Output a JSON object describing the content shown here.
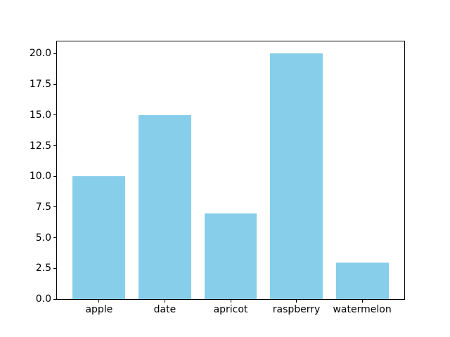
{
  "chart_data": {
    "type": "bar",
    "categories": [
      "apple",
      "date",
      "apricot",
      "raspberry",
      "watermelon"
    ],
    "values": [
      10,
      15,
      7,
      20,
      3
    ],
    "title": "",
    "xlabel": "",
    "ylabel": "",
    "ylim": [
      0,
      21
    ],
    "xlim": [
      -0.64,
      4.64
    ],
    "bar_width_units": 0.8,
    "yticks": [
      0.0,
      2.5,
      5.0,
      7.5,
      10.0,
      12.5,
      15.0,
      17.5,
      20.0
    ],
    "ytick_labels": [
      "0.0",
      "2.5",
      "5.0",
      "7.5",
      "10.0",
      "12.5",
      "15.0",
      "17.5",
      "20.0"
    ],
    "bar_color": "#87ceeb",
    "background_color": "#ffffff",
    "spine_color": "#000000",
    "grid": false,
    "legend": null
  }
}
